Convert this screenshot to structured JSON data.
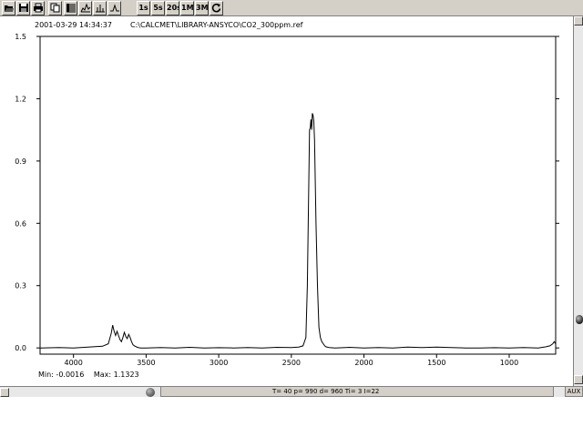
{
  "toolbar": {
    "buttons": [
      {
        "name": "open-icon",
        "label": ""
      },
      {
        "name": "save-icon",
        "label": ""
      },
      {
        "name": "print-icon",
        "label": ""
      },
      {
        "name": "copy-icon",
        "label": ""
      },
      {
        "name": "list-icon",
        "label": ""
      },
      {
        "name": "spectrum-icon",
        "label": ""
      },
      {
        "name": "peaks-icon",
        "label": ""
      },
      {
        "name": "baseline-icon",
        "label": ""
      }
    ],
    "interval_buttons": [
      "1s",
      "5s",
      "20s",
      "1M",
      "3M"
    ],
    "refresh_icon": "refresh-icon"
  },
  "header": {
    "timestamp": "2001-03-29 14:34:37",
    "file_path": "C:\\CALCMET\\LIBRARY-ANSYCO\\CO2_300ppm.ref"
  },
  "chart_data": {
    "type": "line",
    "title": "",
    "xlabel": "",
    "ylabel": "",
    "xlim": [
      4230,
      680
    ],
    "ylim": [
      -0.03,
      1.5
    ],
    "x_reversed": true,
    "x_ticks": [
      4000,
      3500,
      3000,
      2500,
      2000,
      1500,
      1000
    ],
    "y_ticks": [
      0.0,
      0.3,
      0.6,
      0.9,
      1.2,
      1.5
    ],
    "y_tick_labels": [
      "0.0",
      "0.3",
      "0.6",
      "0.9",
      "1.2",
      "1.5"
    ],
    "grid": false,
    "series": [
      {
        "x": [
          4230,
          4100,
          4000,
          3900,
          3800,
          3760,
          3740,
          3730,
          3720,
          3710,
          3700,
          3690,
          3680,
          3670,
          3660,
          3650,
          3640,
          3630,
          3620,
          3610,
          3600,
          3590,
          3580,
          3560,
          3540,
          3500,
          3400,
          3300,
          3200,
          3100,
          3000,
          2900,
          2800,
          2700,
          2600,
          2500,
          2450,
          2420,
          2400,
          2390,
          2380,
          2375,
          2370,
          2365,
          2360,
          2355,
          2350,
          2345,
          2340,
          2335,
          2330,
          2320,
          2310,
          2300,
          2290,
          2280,
          2270,
          2260,
          2240,
          2200,
          2100,
          2000,
          1900,
          1800,
          1700,
          1600,
          1500,
          1400,
          1300,
          1200,
          1100,
          1000,
          900,
          800,
          750,
          720,
          700,
          690,
          680
        ],
        "y": [
          0.0,
          0.002,
          0.0,
          0.004,
          0.008,
          0.02,
          0.07,
          0.11,
          0.08,
          0.06,
          0.08,
          0.06,
          0.04,
          0.03,
          0.05,
          0.075,
          0.055,
          0.045,
          0.065,
          0.05,
          0.03,
          0.015,
          0.01,
          0.003,
          0.0,
          0.0,
          0.002,
          0.0,
          0.003,
          0.0,
          0.001,
          0.0,
          0.002,
          0.0,
          0.003,
          0.002,
          0.004,
          0.01,
          0.05,
          0.3,
          0.8,
          1.05,
          1.06,
          1.1,
          1.05,
          1.13,
          1.12,
          1.09,
          1.0,
          0.8,
          0.6,
          0.3,
          0.1,
          0.05,
          0.03,
          0.02,
          0.01,
          0.005,
          0.002,
          0.0,
          0.003,
          0.0,
          0.002,
          0.0,
          0.004,
          0.002,
          0.004,
          0.002,
          0.0,
          0.0,
          0.001,
          0.0,
          0.002,
          0.0,
          0.005,
          0.01,
          0.02,
          0.03,
          0.02
        ]
      }
    ]
  },
  "minmax": {
    "min": "Min: -0.0016",
    "max": "Max: 1.1323"
  },
  "status": {
    "main": "T= 40  p= 990  d= 960   Ti= 3  I=22",
    "aux": "AUX"
  }
}
